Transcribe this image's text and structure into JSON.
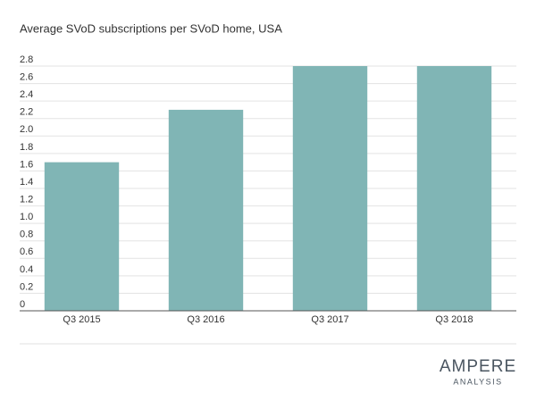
{
  "chart_data": {
    "type": "bar",
    "title": "Average SVoD subscriptions per SVoD home, USA",
    "categories": [
      "Q3 2015",
      "Q3 2016",
      "Q3 2017",
      "Q3 2018"
    ],
    "values": [
      1.7,
      2.3,
      2.8,
      2.8
    ],
    "color": "#80b5b5",
    "ylim": [
      0,
      2.8
    ],
    "yticks": [
      0,
      0.2,
      0.4,
      0.6,
      0.8,
      {
        "value": 1,
        "label": "1.0"
      },
      1.2,
      1.4,
      1.6,
      1.8,
      {
        "value": 2,
        "label": "2.0"
      },
      2.2,
      2.4,
      2.6,
      2.8
    ],
    "grid": true
  },
  "logo": {
    "name": "AMPERE",
    "tagline": "ANALYSIS"
  }
}
